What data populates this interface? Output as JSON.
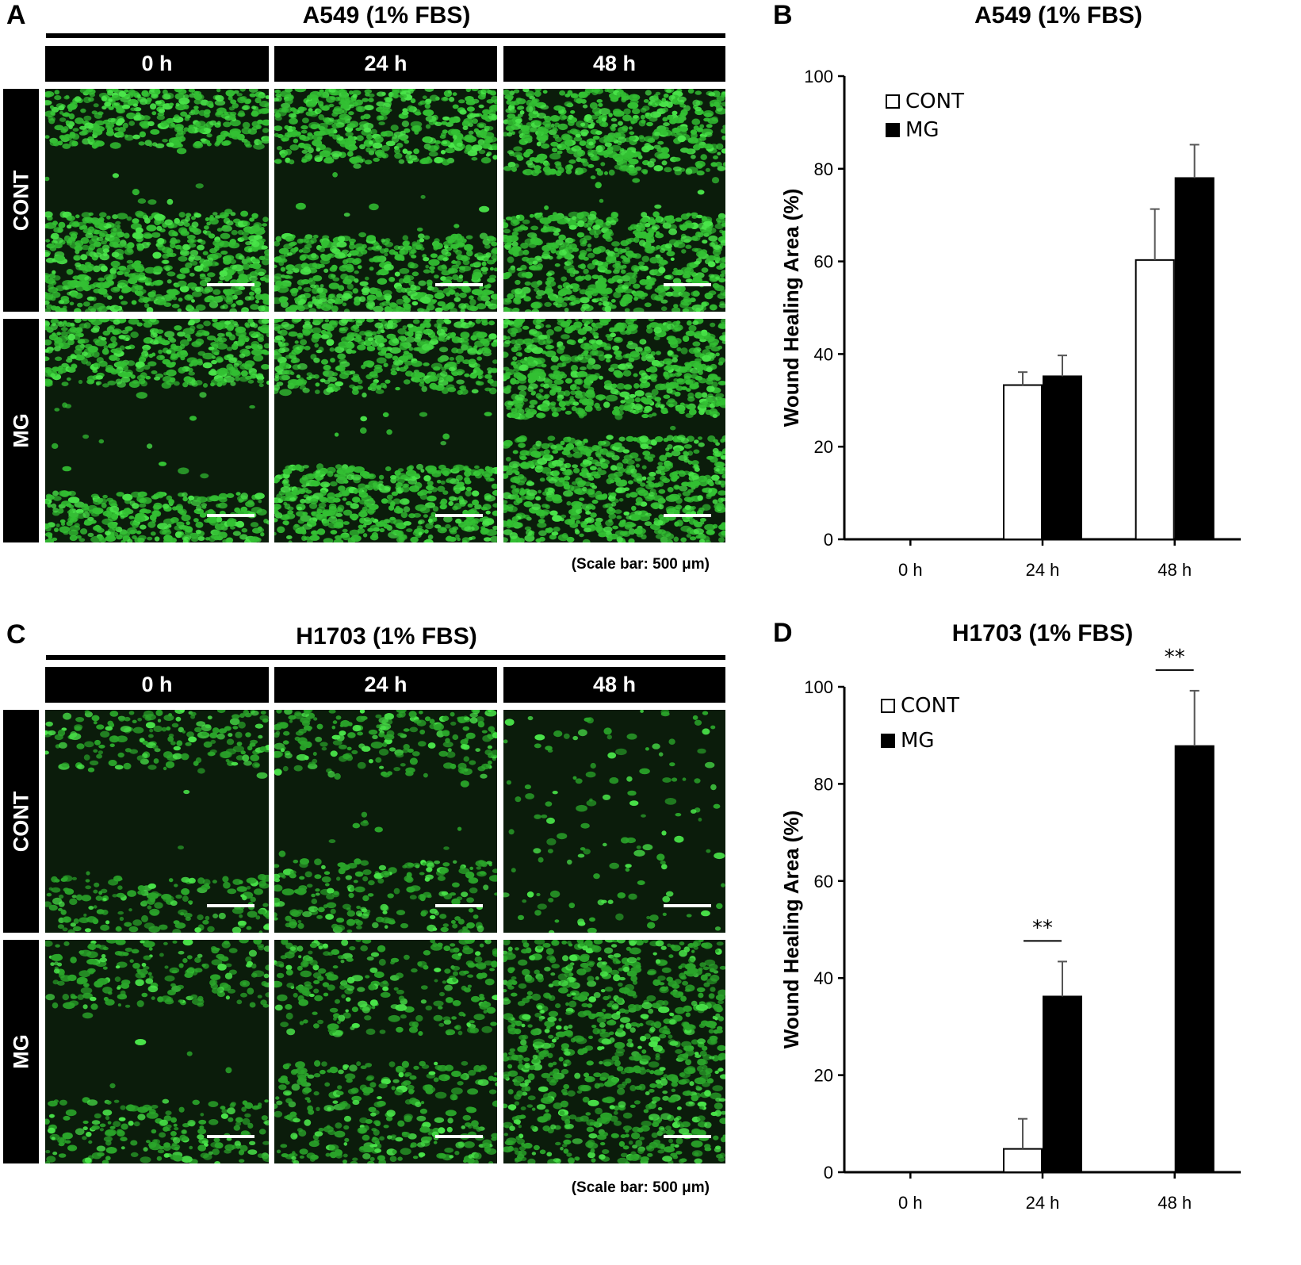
{
  "panel_labels": {
    "a": "A",
    "b": "B",
    "c": "C",
    "d": "D"
  },
  "micrographs": [
    {
      "title": "A549 (1% FBS)",
      "columns": [
        "0 h",
        "24 h",
        "48 h"
      ],
      "rows": [
        "CONT",
        "MG"
      ],
      "scale_caption": "(Scale bar: 500 μm)",
      "colors": {
        "cells": "#33c033",
        "bright": "#4ae64a",
        "gap": "#0b1c0b"
      }
    },
    {
      "title": "H1703 (1% FBS)",
      "columns": [
        "0 h",
        "24 h",
        "48 h"
      ],
      "rows": [
        "CONT",
        "MG"
      ],
      "scale_caption": "(Scale bar: 500 μm)",
      "colors": {
        "cells": "#2aa52a",
        "bright": "#4ae64a",
        "gap": "#0b1c0b"
      }
    }
  ],
  "chart_data": [
    {
      "type": "bar",
      "title": "A549 (1% FBS)",
      "xlabel": "",
      "ylabel": "Wound Healing Area (%)",
      "categories": [
        "0 h",
        "24 h",
        "48 h"
      ],
      "ylim": [
        0,
        100
      ],
      "yticks": [
        0,
        20,
        40,
        60,
        80,
        100
      ],
      "legend_position": "top-left",
      "series": [
        {
          "name": "CONT",
          "values": [
            0,
            33.3,
            60.3
          ],
          "errors": [
            0,
            2.8,
            11.0
          ],
          "fill": "#ffffff"
        },
        {
          "name": "MG",
          "values": [
            0,
            35.2,
            78.0
          ],
          "errors": [
            0,
            4.5,
            7.2
          ],
          "fill": "#000000"
        }
      ],
      "annotations": []
    },
    {
      "type": "bar",
      "title": "H1703 (1% FBS)",
      "xlabel": "",
      "ylabel": "Wound Healing Area (%)",
      "categories": [
        "0 h",
        "24 h",
        "48 h"
      ],
      "ylim": [
        0,
        100
      ],
      "yticks": [
        0,
        20,
        40,
        60,
        80,
        100
      ],
      "legend_position": "top-left",
      "series": [
        {
          "name": "CONT",
          "values": [
            0,
            4.8,
            0
          ],
          "errors": [
            0,
            6.2,
            0
          ],
          "fill": "#ffffff"
        },
        {
          "name": "MG",
          "values": [
            0,
            36.2,
            87.8
          ],
          "errors": [
            0,
            7.2,
            11.4
          ],
          "fill": "#000000"
        }
      ],
      "annotations": [
        {
          "category": "24 h",
          "text": "**"
        },
        {
          "category": "48 h",
          "text": "**"
        }
      ]
    }
  ]
}
